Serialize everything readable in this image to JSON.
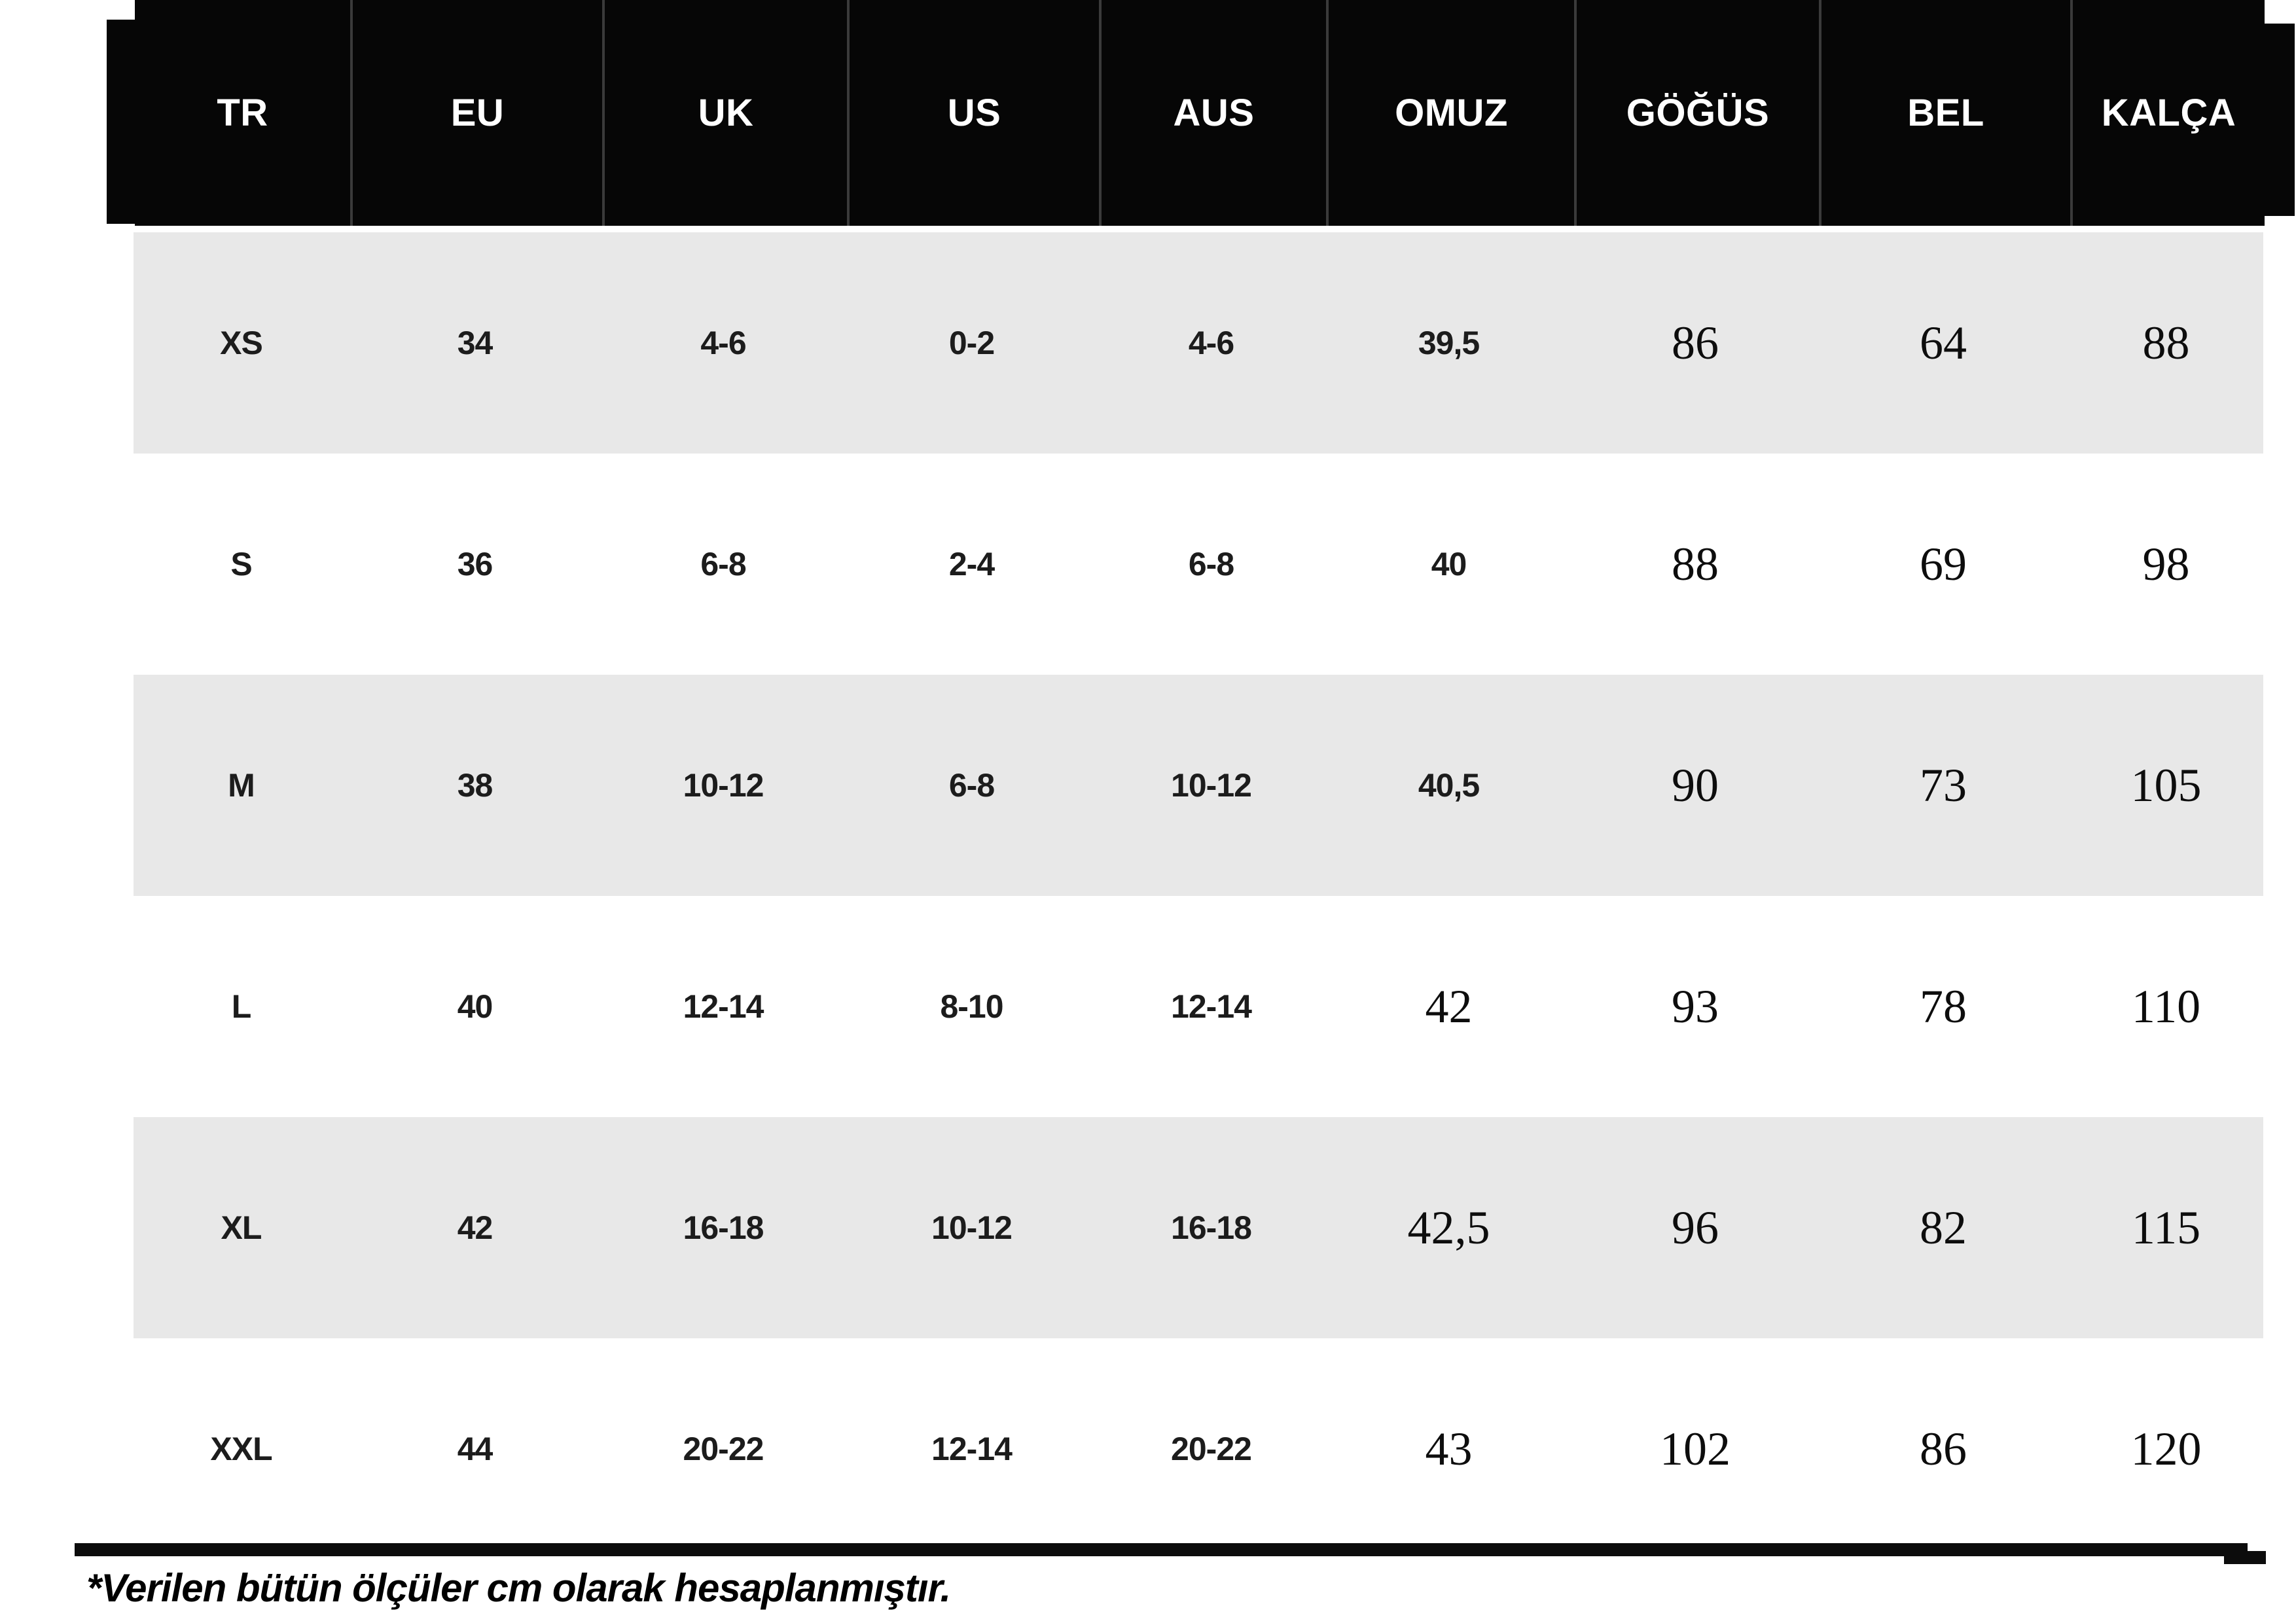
{
  "table": {
    "columns": [
      {
        "label": "TR"
      },
      {
        "label": "EU"
      },
      {
        "label": "UK"
      },
      {
        "label": "US"
      },
      {
        "label": "AUS"
      },
      {
        "label": "OMUZ"
      },
      {
        "label": "GÖĞÜS"
      },
      {
        "label": "BEL"
      },
      {
        "label": "KALÇA"
      }
    ],
    "rows": [
      {
        "size": "XS",
        "eu": "34",
        "uk": "4-6",
        "us": "0-2",
        "aus": "4-6",
        "omuz": "39,5",
        "gogus": "86",
        "bel": "64",
        "kalca": "88"
      },
      {
        "size": "S",
        "eu": "36",
        "uk": "6-8",
        "us": "2-4",
        "aus": "6-8",
        "omuz": "40",
        "gogus": "88",
        "bel": "69",
        "kalca": "98"
      },
      {
        "size": "M",
        "eu": "38",
        "uk": "10-12",
        "us": "6-8",
        "aus": "10-12",
        "omuz": "40,5",
        "gogus": "90",
        "bel": "73",
        "kalca": "105"
      },
      {
        "size": "L",
        "eu": "40",
        "uk": "12-14",
        "us": "8-10",
        "aus": "12-14",
        "omuz": "42",
        "gogus": "93",
        "bel": "78",
        "kalca": "110"
      },
      {
        "size": "XL",
        "eu": "42",
        "uk": "16-18",
        "us": "10-12",
        "aus": "16-18",
        "omuz": "42,5",
        "gogus": "96",
        "bel": "82",
        "kalca": "115"
      },
      {
        "size": "XXL",
        "eu": "44",
        "uk": "20-22",
        "us": "12-14",
        "aus": "20-22",
        "omuz": "43",
        "gogus": "102",
        "bel": "86",
        "kalca": "120"
      }
    ]
  },
  "footnote": "*Verilen bütün ölçüler cm olarak hesaplanmıştır.",
  "colors": {
    "header_bg": "#060606",
    "header_text": "#ffffff",
    "row_shaded": "#e8e8e8",
    "row_plain": "#ffffff",
    "text": "#111111"
  }
}
